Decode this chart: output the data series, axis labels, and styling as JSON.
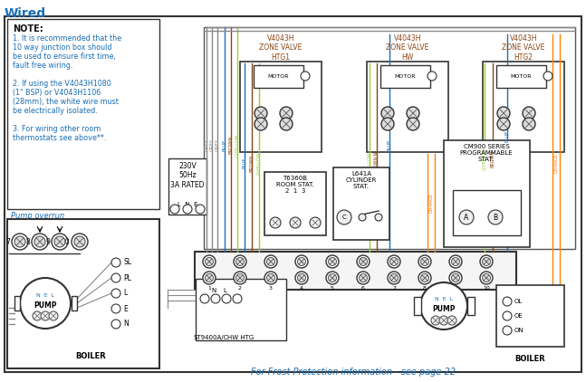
{
  "title": "Wired",
  "bg_color": "#ffffff",
  "note_text": "NOTE:",
  "note_lines": [
    "1. It is recommended that the",
    "10 way junction box should",
    "be used to ensure first time,",
    "fault free wiring.",
    "",
    "2. If using the V4043H1080",
    "(1\" BSP) or V4043H1106",
    "(28mm), the white wire must",
    "be electrically isolated.",
    "",
    "3. For wiring other room",
    "thermostats see above**."
  ],
  "frost_text": "For Frost Protection information - see page 22",
  "pump_overrun_text": "Pump overrun",
  "supply_text": "230V\n50Hz\n3A RATED",
  "st9400_text": "ST9400A/C",
  "hw_htg_text": "HW HTG",
  "boiler_text": "BOILER",
  "cm900_text": "CM900 SERIES\nPROGRAMMABLE\nSTAT.",
  "room_stat_text": "T6360B\nROOM STAT.\n2  1  3",
  "cyl_stat_text": "L641A\nCYLINDER\nSTAT.",
  "zv_labels": [
    "V4043H\nZONE VALVE\nHTG1",
    "V4043H\nZONE VALVE\nHW",
    "V4043H\nZONE VALVE\nHTG2"
  ],
  "wire_colors": {
    "grey": "#888888",
    "blue": "#1a6eb5",
    "brown": "#8B4513",
    "gyellow": "#9acd32",
    "orange": "#FF8000",
    "black": "#222222"
  }
}
